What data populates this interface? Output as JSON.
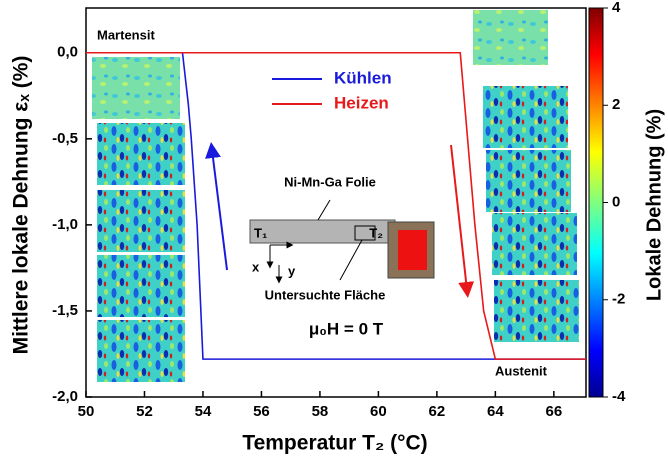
{
  "chart_data": {
    "type": "line",
    "xlabel": "Temperatur T₂ (°C)",
    "ylabel": "Mittlere lokale Dehnung εₓ (%)",
    "xlim": [
      50,
      67.1
    ],
    "ylim": [
      -2.0,
      0.26
    ],
    "xticks": [
      50,
      52,
      54,
      56,
      58,
      60,
      62,
      64,
      66
    ],
    "yticks": [
      {
        "value": 0,
        "label": "0,0"
      },
      {
        "value": -0.5,
        "label": "-0,5"
      },
      {
        "value": -1.0,
        "label": "-1,0"
      },
      {
        "value": -1.5,
        "label": "-1,5"
      },
      {
        "value": -2.0,
        "label": "-2,0"
      }
    ],
    "series": [
      {
        "name": "Kühlen",
        "color": "#1a1adc",
        "x": [
          50,
          53.3,
          53.5,
          53.6,
          53.8,
          54.0,
          64.0,
          67.1
        ],
        "values": [
          0,
          0,
          -0.3,
          -0.5,
          -1.0,
          -1.78,
          -1.78,
          -1.78
        ]
      },
      {
        "name": "Heizen",
        "color": "#e8191a",
        "x": [
          50,
          62.8,
          63.0,
          63.3,
          63.6,
          64.0,
          67.1
        ],
        "values": [
          0,
          0,
          -0.4,
          -1.0,
          -1.5,
          -1.78,
          -1.78
        ]
      }
    ],
    "colorbar": {
      "label": "Lokale Dehnung (%)",
      "lim": [
        -4,
        4
      ],
      "ticks": [
        4,
        2,
        0,
        -2,
        -4
      ]
    },
    "annotations": {
      "martensite": "Martensit",
      "austenite": "Austenit",
      "foil": "Ni-Mn-Ga Folie",
      "area": "Untersuchte Fläche",
      "t1": "T₁",
      "t2": "T₂",
      "x": "x",
      "y": "y",
      "field": "μ₀H = 0 T"
    }
  }
}
